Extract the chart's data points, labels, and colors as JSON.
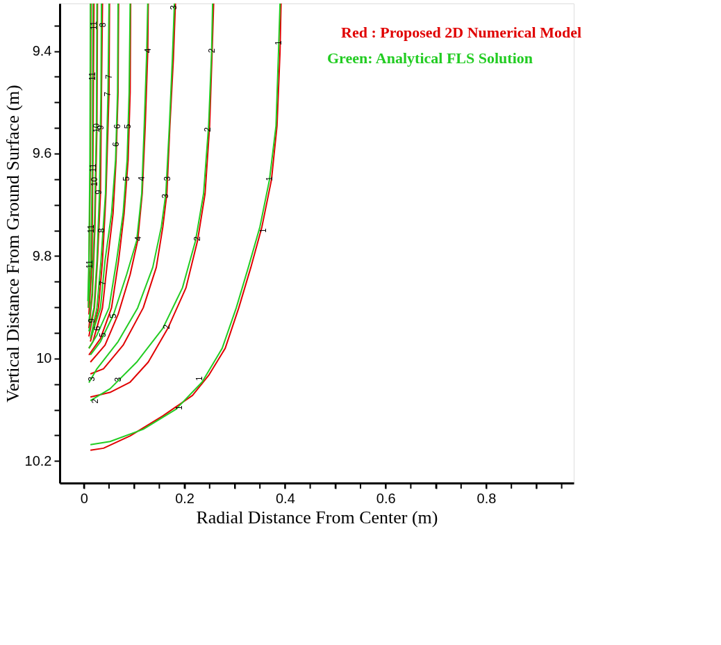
{
  "chart_data": {
    "type": "line",
    "xlabel": "Radial Distance From Center (m)",
    "ylabel": "Vertical Distance From Ground Surface (m)",
    "xlim": [
      -0.048,
      0.974
    ],
    "ylim": [
      10.243,
      9.307
    ],
    "xticks": [
      0,
      {
        "value": 0.05,
        "label": null
      },
      {
        "value": 0.1,
        "label": null
      },
      {
        "value": 0.15,
        "label": null
      },
      0.2,
      {
        "value": 0.25,
        "label": null
      },
      {
        "value": 0.3,
        "label": null
      },
      {
        "value": 0.35,
        "label": null
      },
      0.4,
      {
        "value": 0.45,
        "label": null
      },
      {
        "value": 0.5,
        "label": null
      },
      {
        "value": 0.55,
        "label": null
      },
      0.6,
      {
        "value": 0.65,
        "label": null
      },
      {
        "value": 0.7,
        "label": null
      },
      {
        "value": 0.75,
        "label": null
      },
      0.8,
      {
        "value": 0.85,
        "label": null
      },
      {
        "value": 0.9,
        "label": null
      },
      {
        "value": 0.95,
        "label": null
      }
    ],
    "yticks": [
      {
        "value": 9.35,
        "label": null
      },
      9.4,
      {
        "value": 9.45,
        "label": null
      },
      {
        "value": 9.5,
        "label": null
      },
      {
        "value": 9.55,
        "label": null
      },
      9.6,
      {
        "value": 9.65,
        "label": null
      },
      {
        "value": 9.7,
        "label": null
      },
      {
        "value": 9.75,
        "label": null
      },
      9.8,
      {
        "value": 9.85,
        "label": null
      },
      {
        "value": 9.9,
        "label": null
      },
      {
        "value": 9.95,
        "label": null
      },
      10,
      {
        "value": 10.05,
        "label": null
      },
      {
        "value": 10.1,
        "label": null
      },
      {
        "value": 10.15,
        "label": null
      },
      10.2
    ],
    "grid": false,
    "legend": "top right",
    "marker": "none",
    "line_style": "solid",
    "series": [
      {
        "name": "Red : Proposed 2D Numerical Model",
        "color": "#e00000",
        "x": [
          0.392,
          0.39,
          0.384,
          0.373,
          0.354,
          0.332,
          0.308,
          0.281,
          0.248,
          0.216,
          0.157,
          0.092,
          0.039,
          0.013
        ],
        "values": [
          9.307,
          9.401,
          9.546,
          9.651,
          9.743,
          9.822,
          9.901,
          9.98,
          10.033,
          10.072,
          10.112,
          10.151,
          10.175,
          10.179
        ]
      },
      {
        "color": "#e00000",
        "x": [
          0.258,
          0.255,
          0.25,
          0.241,
          0.226,
          0.203,
          0.167,
          0.128,
          0.092,
          0.052,
          0.013
        ],
        "values": [
          9.307,
          9.401,
          9.546,
          9.678,
          9.77,
          9.862,
          9.941,
          10.007,
          10.046,
          10.066,
          10.075
        ]
      },
      {
        "color": "#e00000",
        "x": [
          0.182,
          0.178,
          0.171,
          0.165,
          0.157,
          0.144,
          0.118,
          0.078,
          0.039,
          0.013
        ],
        "values": [
          9.307,
          9.414,
          9.546,
          9.678,
          9.743,
          9.822,
          9.901,
          9.974,
          10.02,
          10.03
        ]
      },
      {
        "color": "#e00000",
        "x": [
          0.128,
          0.127,
          0.122,
          0.116,
          0.107,
          0.092,
          0.068,
          0.042,
          0.013
        ],
        "values": [
          9.307,
          9.401,
          9.546,
          9.678,
          9.77,
          9.836,
          9.914,
          9.974,
          10.007
        ]
      },
      {
        "color": "#e00000",
        "x": [
          0.093,
          0.092,
          0.088,
          0.08,
          0.069,
          0.055,
          0.033,
          0.01
        ],
        "values": [
          9.307,
          9.48,
          9.612,
          9.717,
          9.809,
          9.901,
          9.961,
          9.993
        ]
      },
      {
        "color": "#e00000",
        "x": [
          0.069,
          0.068,
          0.064,
          0.058,
          0.047,
          0.037,
          0.018,
          0.01
        ],
        "values": [
          9.307,
          9.48,
          9.612,
          9.717,
          9.809,
          9.901,
          9.967,
          9.98
        ]
      },
      {
        "color": "#e00000",
        "x": [
          0.051,
          0.05,
          0.044,
          0.037,
          0.029,
          0.013
        ],
        "values": [
          9.307,
          9.48,
          9.678,
          9.809,
          9.901,
          9.967
        ]
      },
      {
        "color": "#e00000",
        "x": [
          0.037,
          0.035,
          0.033,
          0.027,
          0.021,
          0.01
        ],
        "values": [
          9.307,
          9.48,
          9.678,
          9.809,
          9.901,
          9.957
        ]
      },
      {
        "color": "#e00000",
        "x": [
          0.027,
          0.026,
          0.022,
          0.017,
          0.01
        ],
        "values": [
          9.307,
          9.546,
          9.743,
          9.875,
          9.941
        ]
      },
      {
        "color": "#e00000",
        "x": [
          0.02,
          0.018,
          0.016,
          0.01
        ],
        "values": [
          9.307,
          9.612,
          9.809,
          9.914
        ]
      },
      {
        "color": "#e00000",
        "x": [
          0.014,
          0.013,
          0.01,
          0.009
        ],
        "values": [
          9.307,
          9.612,
          9.836,
          9.901
        ]
      },
      {
        "name": "Green: Analytical FLS Solution",
        "color": "#22cc22",
        "x": [
          0.39,
          0.387,
          0.382,
          0.369,
          0.35,
          0.327,
          0.303,
          0.275,
          0.235,
          0.183,
          0.118,
          0.052,
          0.013
        ],
        "values": [
          9.307,
          9.401,
          9.546,
          9.651,
          9.743,
          9.822,
          9.901,
          9.98,
          10.046,
          10.099,
          10.138,
          10.162,
          10.168
        ]
      },
      {
        "color": "#22cc22",
        "x": [
          0.256,
          0.254,
          0.248,
          0.238,
          0.222,
          0.196,
          0.157,
          0.105,
          0.052,
          0.013
        ],
        "values": [
          9.307,
          9.401,
          9.546,
          9.678,
          9.77,
          9.862,
          9.941,
          10.007,
          10.059,
          10.082
        ]
      },
      {
        "color": "#22cc22",
        "x": [
          0.18,
          0.176,
          0.17,
          0.163,
          0.154,
          0.137,
          0.107,
          0.068,
          0.026,
          0.01
        ],
        "values": [
          9.307,
          9.414,
          9.546,
          9.678,
          9.743,
          9.822,
          9.901,
          9.967,
          10.02,
          10.047
        ]
      },
      {
        "color": "#22cc22",
        "x": [
          0.127,
          0.125,
          0.12,
          0.115,
          0.105,
          0.085,
          0.059,
          0.033,
          0.013
        ],
        "values": [
          9.307,
          9.401,
          9.546,
          9.678,
          9.77,
          9.836,
          9.914,
          9.967,
          9.993
        ]
      },
      {
        "color": "#22cc22",
        "x": [
          0.092,
          0.09,
          0.086,
          0.078,
          0.065,
          0.05,
          0.026,
          0.01
        ],
        "values": [
          9.307,
          9.48,
          9.612,
          9.717,
          9.809,
          9.901,
          9.954,
          9.98
        ]
      },
      {
        "color": "#22cc22",
        "x": [
          0.068,
          0.067,
          0.063,
          0.055,
          0.042,
          0.033,
          0.016
        ],
        "values": [
          9.307,
          9.48,
          9.612,
          9.717,
          9.809,
          9.901,
          9.954
        ]
      },
      {
        "color": "#22cc22",
        "x": [
          0.05,
          0.048,
          0.043,
          0.034,
          0.026,
          0.013
        ],
        "values": [
          9.307,
          9.48,
          9.678,
          9.809,
          9.901,
          9.961
        ]
      },
      {
        "color": "#22cc22",
        "x": [
          0.035,
          0.034,
          0.031,
          0.026,
          0.02,
          0.01
        ],
        "values": [
          9.307,
          9.48,
          9.678,
          9.809,
          9.901,
          9.947
        ]
      },
      {
        "color": "#22cc22",
        "x": [
          0.026,
          0.025,
          0.021,
          0.016,
          0.01
        ],
        "values": [
          9.307,
          9.546,
          9.743,
          9.875,
          9.928
        ]
      },
      {
        "color": "#22cc22",
        "x": [
          0.018,
          0.017,
          0.014,
          0.009
        ],
        "values": [
          9.307,
          9.612,
          9.809,
          9.901
        ]
      },
      {
        "color": "#22cc22",
        "x": [
          0.013,
          0.012,
          0.01,
          0.008
        ],
        "values": [
          9.307,
          9.612,
          9.809,
          9.888
        ]
      }
    ],
    "annotations": [
      {
        "text": "1",
        "x": 0.387,
        "y": 9.384
      },
      {
        "text": "1",
        "x": 0.369,
        "y": 9.649
      },
      {
        "text": "1",
        "x": 0.356,
        "y": 9.75
      },
      {
        "text": "1",
        "x": 0.23,
        "y": 10.039
      },
      {
        "text": "1",
        "x": 0.19,
        "y": 10.096
      },
      {
        "text": "2",
        "x": 0.254,
        "y": 9.399
      },
      {
        "text": "2",
        "x": 0.246,
        "y": 9.553
      },
      {
        "text": "2",
        "x": 0.225,
        "y": 9.766
      },
      {
        "text": "2",
        "x": 0.165,
        "y": 9.938
      },
      {
        "text": "2",
        "x": 0.022,
        "y": 10.083
      },
      {
        "text": "3",
        "x": 0.179,
        "y": 9.315
      },
      {
        "text": "3",
        "x": 0.166,
        "y": 9.649
      },
      {
        "text": "3",
        "x": 0.162,
        "y": 9.683
      },
      {
        "text": "3",
        "x": 0.068,
        "y": 10.041
      },
      {
        "text": "3",
        "x": 0.016,
        "y": 10.04
      },
      {
        "text": "4",
        "x": 0.127,
        "y": 9.399
      },
      {
        "text": "4",
        "x": 0.115,
        "y": 9.649
      },
      {
        "text": "4",
        "x": 0.108,
        "y": 9.766
      },
      {
        "text": "5",
        "x": 0.088,
        "y": 9.547
      },
      {
        "text": "5",
        "x": 0.085,
        "y": 9.649
      },
      {
        "text": "5",
        "x": 0.058,
        "y": 9.917
      },
      {
        "text": "5",
        "x": 0.038,
        "y": 9.954
      },
      {
        "text": "6",
        "x": 0.067,
        "y": 9.547
      },
      {
        "text": "6",
        "x": 0.064,
        "y": 9.582
      },
      {
        "text": "6",
        "x": 0.027,
        "y": 9.941
      },
      {
        "text": "7",
        "x": 0.05,
        "y": 9.45
      },
      {
        "text": "7",
        "x": 0.047,
        "y": 9.484
      },
      {
        "text": "7",
        "x": 0.037,
        "y": 9.853
      },
      {
        "text": "8",
        "x": 0.038,
        "y": 9.349
      },
      {
        "text": "8",
        "x": 0.035,
        "y": 9.75
      },
      {
        "text": "9",
        "x": 0.033,
        "y": 9.549
      },
      {
        "text": "9",
        "x": 0.03,
        "y": 9.675
      },
      {
        "text": "9",
        "x": 0.016,
        "y": 9.926
      },
      {
        "text": "10",
        "x": 0.025,
        "y": 9.55
      },
      {
        "text": "10",
        "x": 0.021,
        "y": 9.655
      },
      {
        "text": "11",
        "x": 0.02,
        "y": 9.35
      },
      {
        "text": "11",
        "x": 0.017,
        "y": 9.449
      },
      {
        "text": "11",
        "x": 0.018,
        "y": 9.628
      },
      {
        "text": "11",
        "x": 0.014,
        "y": 9.747
      },
      {
        "text": "11",
        "x": 0.012,
        "y": 9.816
      }
    ]
  }
}
